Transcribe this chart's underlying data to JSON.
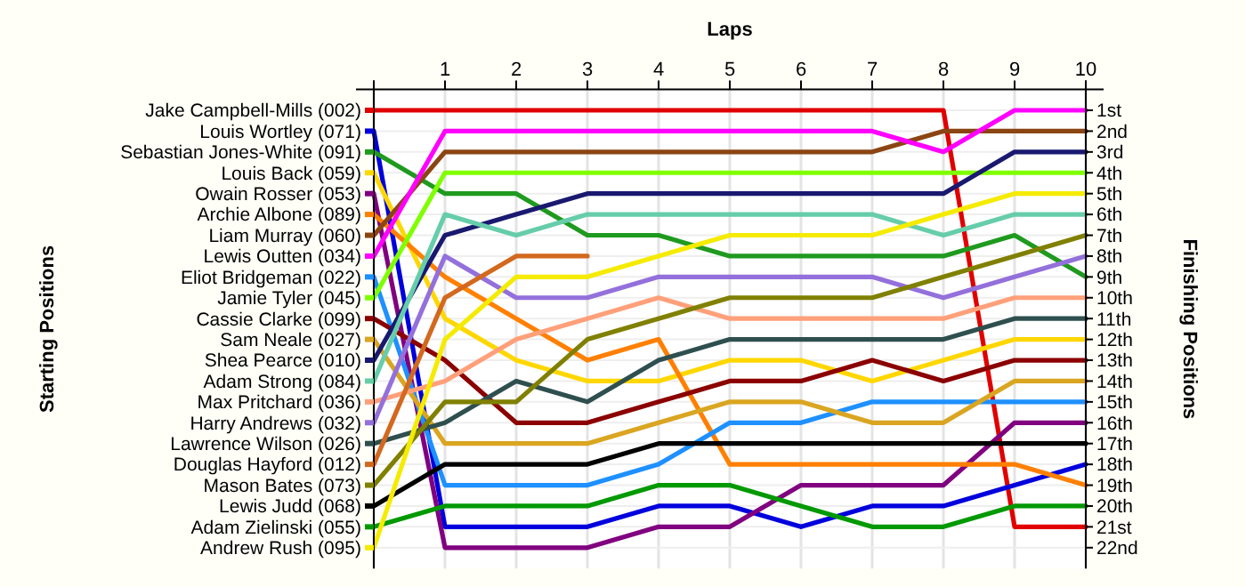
{
  "chart_data": {
    "type": "line",
    "xlabel": "Laps",
    "ylabel": "Finishing Positions",
    "x": [
      0,
      1,
      2,
      3,
      4,
      5,
      6,
      7,
      8,
      9,
      10
    ],
    "xlim": [
      0,
      10
    ],
    "xticks": [
      {
        "value": 0,
        "label": null
      },
      1,
      2,
      3,
      4,
      5,
      6,
      7,
      8,
      9,
      10
    ],
    "ylim": [
      23,
      0
    ],
    "yticks": [
      {
        "value": 1,
        "label": "1st"
      },
      {
        "value": 2,
        "label": "2nd"
      },
      {
        "value": 3,
        "label": "3rd"
      },
      {
        "value": 4,
        "label": "4th"
      },
      {
        "value": 5,
        "label": "5th"
      },
      {
        "value": 6,
        "label": "6th"
      },
      {
        "value": 7,
        "label": "7th"
      },
      {
        "value": 8,
        "label": "8th"
      },
      {
        "value": 9,
        "label": "9th"
      },
      {
        "value": 10,
        "label": "10th"
      },
      {
        "value": 11,
        "label": "11th"
      },
      {
        "value": 12,
        "label": "12th"
      },
      {
        "value": 13,
        "label": "13th"
      },
      {
        "value": 14,
        "label": "14th"
      },
      {
        "value": 15,
        "label": "15th"
      },
      {
        "value": 16,
        "label": "16th"
      },
      {
        "value": 17,
        "label": "17th"
      },
      {
        "value": 18,
        "label": "18th"
      },
      {
        "value": 19,
        "label": "19th"
      },
      {
        "value": 20,
        "label": "20th"
      },
      {
        "value": 21,
        "label": "21st"
      },
      {
        "value": 22,
        "label": "22nd"
      }
    ],
    "annotations": [
      "Starting Positions"
    ],
    "grid": true,
    "legend": "left",
    "marker": "none",
    "line_style": "solid",
    "series": [
      {
        "name": "Jake Campbell-Mills (002)",
        "color": "#e00000",
        "values": [
          1,
          1,
          1,
          1,
          1,
          1,
          1,
          1,
          1,
          21,
          21
        ]
      },
      {
        "name": "Louis Wortley (071)",
        "color": "#0000dd",
        "values": [
          2,
          21,
          21,
          21,
          20,
          20,
          21,
          20,
          20,
          19,
          18
        ]
      },
      {
        "name": "Sebastian Jones-White (091)",
        "color": "#1f9a1f",
        "values": [
          3,
          5,
          5,
          7,
          7,
          8,
          8,
          8,
          8,
          7,
          9
        ]
      },
      {
        "name": "Louis Back (059)",
        "color": "#ffd700",
        "values": [
          4,
          11,
          13,
          14,
          14,
          13,
          13,
          14,
          13,
          12,
          12
        ]
      },
      {
        "name": "Owain Rosser (053)",
        "color": "#800080",
        "values": [
          5,
          22,
          22,
          22,
          21,
          21,
          19,
          19,
          19,
          16,
          16
        ]
      },
      {
        "name": "Archie Albone (089)",
        "color": "#ff8000",
        "values": [
          6,
          9,
          11,
          13,
          12,
          18,
          18,
          18,
          18,
          18,
          19
        ]
      },
      {
        "name": "Liam Murray (060)",
        "color": "#8b4513",
        "values": [
          7,
          3,
          3,
          3,
          3,
          3,
          3,
          3,
          2,
          2,
          2
        ]
      },
      {
        "name": "Lewis Outten (034)",
        "color": "#ff00ff",
        "values": [
          8,
          2,
          2,
          2,
          2,
          2,
          2,
          2,
          3,
          1,
          1
        ]
      },
      {
        "name": "Eliot Bridgeman (022)",
        "color": "#1e90ff",
        "values": [
          9,
          19,
          19,
          19,
          18,
          16,
          16,
          15,
          15,
          15,
          15
        ]
      },
      {
        "name": "Jamie Tyler (045)",
        "color": "#7fff00",
        "values": [
          10,
          4,
          4,
          4,
          4,
          4,
          4,
          4,
          4,
          4,
          4
        ]
      },
      {
        "name": "Cassie Clarke (099)",
        "color": "#8b0000",
        "values": [
          11,
          13,
          16,
          16,
          15,
          14,
          14,
          13,
          14,
          13,
          13
        ]
      },
      {
        "name": "Sam Neale (027)",
        "color": "#daa520",
        "values": [
          12,
          17,
          17,
          17,
          16,
          15,
          15,
          16,
          16,
          14,
          14
        ]
      },
      {
        "name": "Shea Pearce (010)",
        "color": "#191970",
        "values": [
          13,
          7,
          6,
          5,
          5,
          5,
          5,
          5,
          5,
          3,
          3
        ]
      },
      {
        "name": "Adam Strong (084)",
        "color": "#66cdaa",
        "values": [
          14,
          6,
          7,
          6,
          6,
          6,
          6,
          6,
          7,
          6,
          6
        ]
      },
      {
        "name": "Max Pritchard (036)",
        "color": "#ffa07a",
        "values": [
          15,
          14,
          12,
          11,
          10,
          11,
          11,
          11,
          11,
          10,
          10
        ]
      },
      {
        "name": "Harry Andrews (032)",
        "color": "#9370db",
        "values": [
          16,
          8,
          10,
          10,
          9,
          9,
          9,
          9,
          10,
          9,
          8
        ]
      },
      {
        "name": "Lawrence Wilson (026)",
        "color": "#2f4f4f",
        "values": [
          17,
          16,
          14,
          15,
          13,
          12,
          12,
          12,
          12,
          11,
          11
        ]
      },
      {
        "name": "Douglas Hayford (012)",
        "color": "#d2691e",
        "values": [
          18,
          10,
          8,
          8,
          null,
          null,
          null,
          null,
          null,
          null,
          null
        ]
      },
      {
        "name": "Mason Bates (073)",
        "color": "#808000",
        "values": [
          19,
          15,
          15,
          12,
          11,
          10,
          10,
          10,
          9,
          8,
          7
        ]
      },
      {
        "name": "Lewis Judd (068)",
        "color": "#000000",
        "values": [
          20,
          18,
          18,
          18,
          17,
          17,
          17,
          17,
          17,
          17,
          17
        ]
      },
      {
        "name": "Adam Zielinski (055)",
        "color": "#009900",
        "values": [
          21,
          20,
          20,
          20,
          19,
          19,
          20,
          21,
          21,
          20,
          20
        ]
      },
      {
        "name": "Andrew Rush (095)",
        "color": "#f5eb00",
        "values": [
          22,
          12,
          9,
          9,
          8,
          7,
          7,
          7,
          6,
          5,
          5
        ]
      }
    ]
  }
}
